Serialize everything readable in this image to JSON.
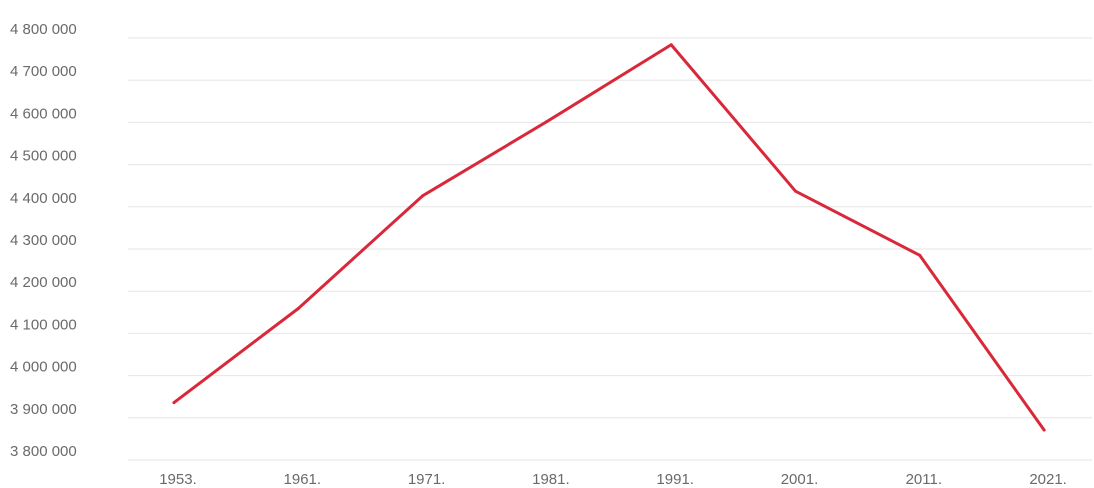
{
  "colors": {
    "line": "#d9283a",
    "grid": "#e6e6e6",
    "text": "#6a6a6a"
  },
  "chart_data": {
    "type": "line",
    "title": "",
    "xlabel": "",
    "ylabel": "",
    "categories": [
      "1953.",
      "1961.",
      "1971.",
      "1981.",
      "1991.",
      "2001.",
      "2011.",
      "2021."
    ],
    "series": [
      {
        "values": [
          3936000,
          4159000,
          4426000,
          4602000,
          4784000,
          4437000,
          4285000,
          3871000
        ]
      }
    ],
    "ylim": [
      3800000,
      4800000
    ],
    "yticks": [
      3800000,
      3900000,
      4000000,
      4100000,
      4200000,
      4300000,
      4400000,
      4500000,
      4600000,
      4700000,
      4800000
    ],
    "ytick_labels": [
      "3 800 000",
      "3 900 000",
      "4 000 000",
      "4 100 000",
      "4 200 000",
      "4 300 000",
      "4 400 000",
      "4 500 000",
      "4 600 000",
      "4 700 000",
      "4 800 000"
    ],
    "grid": true,
    "legend": "none"
  }
}
